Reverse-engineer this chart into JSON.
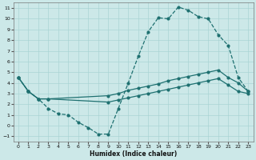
{
  "xlabel": "Humidex (Indice chaleur)",
  "bg_color": "#cce8e8",
  "grid_color": "#aad4d4",
  "line_color": "#1e7070",
  "xlim": [
    -0.5,
    23.5
  ],
  "ylim": [
    -1.5,
    11.5
  ],
  "xticks": [
    0,
    1,
    2,
    3,
    4,
    5,
    6,
    7,
    8,
    9,
    10,
    11,
    12,
    13,
    14,
    15,
    16,
    17,
    18,
    19,
    20,
    21,
    22,
    23
  ],
  "yticks": [
    -1,
    0,
    1,
    2,
    3,
    4,
    5,
    6,
    7,
    8,
    9,
    10,
    11
  ],
  "line1_x": [
    0,
    1,
    2,
    3,
    4,
    5,
    6,
    7,
    8,
    9,
    10,
    11,
    12,
    13,
    14,
    15,
    16,
    17,
    18,
    19,
    20,
    21,
    22,
    23
  ],
  "line1_y": [
    4.5,
    3.2,
    2.5,
    1.6,
    1.1,
    1.0,
    0.3,
    -0.2,
    -0.8,
    -0.8,
    1.6,
    4.0,
    6.5,
    8.8,
    10.1,
    10.0,
    11.1,
    10.8,
    10.2,
    10.0,
    8.5,
    7.5,
    4.5,
    3.2
  ],
  "line2_x": [
    0,
    1,
    2,
    3,
    9,
    10,
    11,
    12,
    13,
    14,
    15,
    16,
    17,
    18,
    19,
    20,
    21,
    22,
    23
  ],
  "line2_y": [
    4.5,
    3.2,
    2.5,
    2.5,
    2.8,
    3.0,
    3.3,
    3.5,
    3.7,
    3.9,
    4.2,
    4.4,
    4.6,
    4.8,
    5.0,
    5.2,
    4.5,
    4.0,
    3.2
  ],
  "line3_x": [
    0,
    1,
    2,
    3,
    9,
    10,
    11,
    12,
    13,
    14,
    15,
    16,
    17,
    18,
    19,
    20,
    21,
    22,
    23
  ],
  "line3_y": [
    4.5,
    3.2,
    2.5,
    2.5,
    2.2,
    2.4,
    2.6,
    2.8,
    3.0,
    3.2,
    3.4,
    3.6,
    3.8,
    4.0,
    4.2,
    4.4,
    3.8,
    3.2,
    3.0
  ]
}
